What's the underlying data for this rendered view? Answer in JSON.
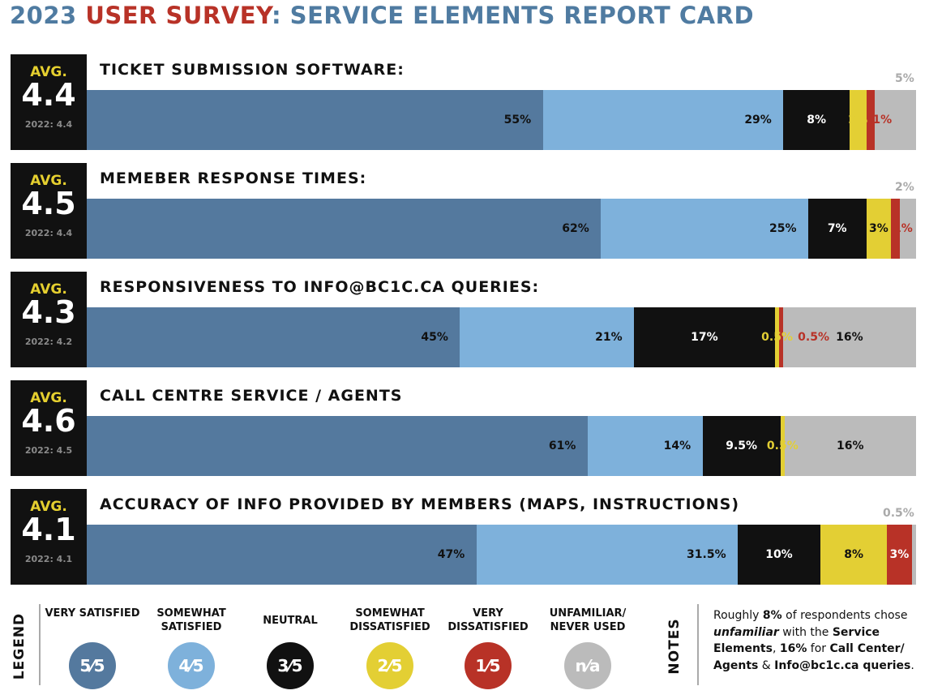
{
  "title": {
    "part1": "2023 ",
    "highlight": "USER SURVEY",
    "part2": ": SERVICE ELEMENTS REPORT CARD"
  },
  "avg_label": "AVG.",
  "colors": {
    "very_satisfied": "#54799e",
    "somewhat_satisfied": "#7eb1db",
    "neutral": "#111111",
    "somewhat_dissatisfied": "#e3cf34",
    "very_dissatisfied": "#b83227",
    "unfamiliar": "#bbbbbb",
    "title_blue": "#4f7ba1",
    "title_red": "#b83227"
  },
  "chart_data": {
    "type": "bar",
    "orientation": "horizontal-stacked-100",
    "series_names": [
      "VERY SATISFIED",
      "SOMEWHAT SATISFIED",
      "NEUTRAL",
      "SOMEWHAT DISSATISFIED",
      "VERY DISSATISFIED",
      "UNFAMILIAR/ NEVER USED"
    ],
    "rows": [
      {
        "title": "TICKET SUBMISSION SOFTWARE:",
        "avg": "4.4",
        "prev": "2022: 4.4",
        "values": [
          55,
          29,
          8,
          2,
          1,
          5
        ],
        "labels": [
          "55%",
          "29%",
          "8%",
          "2%",
          "1%",
          "5%"
        ]
      },
      {
        "title": "MEMEBER RESPONSE TIMES:",
        "avg": "4.5",
        "prev": "2022: 4.4",
        "values": [
          62,
          25,
          7,
          3,
          1,
          2
        ],
        "labels": [
          "62%",
          "25%",
          "7%",
          "3%",
          "1%",
          "2%"
        ]
      },
      {
        "title": "RESPONSIVENESS TO INFO@BC1C.CA QUERIES:",
        "avg": "4.3",
        "prev": "2022: 4.2",
        "values": [
          45,
          21,
          17,
          0.5,
          0.5,
          16
        ],
        "labels": [
          "45%",
          "21%",
          "17%",
          "0.5%",
          "0.5%",
          "16%"
        ]
      },
      {
        "title": "CALL CENTRE SERVICE / AGENTS",
        "avg": "4.6",
        "prev": "2022: 4.5",
        "values": [
          61,
          14,
          9.5,
          0.5,
          0,
          16
        ],
        "labels": [
          "61%",
          "14%",
          "9.5%",
          "0.5%",
          "",
          "16%"
        ]
      },
      {
        "title": "ACCURACY OF INFO PROVIDED BY MEMBERS (MAPS, INSTRUCTIONS)",
        "avg": "4.1",
        "prev": "2022: 4.1",
        "values": [
          47,
          31.5,
          10,
          8,
          3,
          0.5
        ],
        "labels": [
          "47%",
          "31.5%",
          "10%",
          "8%",
          "3%",
          "0.5%"
        ]
      }
    ]
  },
  "legend": {
    "title": "LEGEND",
    "items": [
      {
        "label": "VERY SATISFIED",
        "mark": "5⁄5"
      },
      {
        "label": "SOMEWHAT SATISFIED",
        "mark": "4⁄5"
      },
      {
        "label": "NEUTRAL",
        "mark": "3⁄5"
      },
      {
        "label": "SOMEWHAT DISSATISFIED",
        "mark": "2⁄5"
      },
      {
        "label": "VERY DISSATISFIED",
        "mark": "1⁄5"
      },
      {
        "label": "UNFAMILIAR/ NEVER USED",
        "mark": "n⁄a"
      }
    ]
  },
  "notes": {
    "title": "NOTES",
    "t1": "Roughly ",
    "b1": "8%",
    "t2": " of respondents chose ",
    "i1": "unfamiliar",
    "t3": " with the ",
    "b2": "Service Elements",
    "t4": ", ",
    "b3": "16%",
    "t5": " for ",
    "b4": "Call Center/ Agents",
    "t6": " & ",
    "b5": "Info@bc1c.ca queries",
    "t7": "."
  }
}
